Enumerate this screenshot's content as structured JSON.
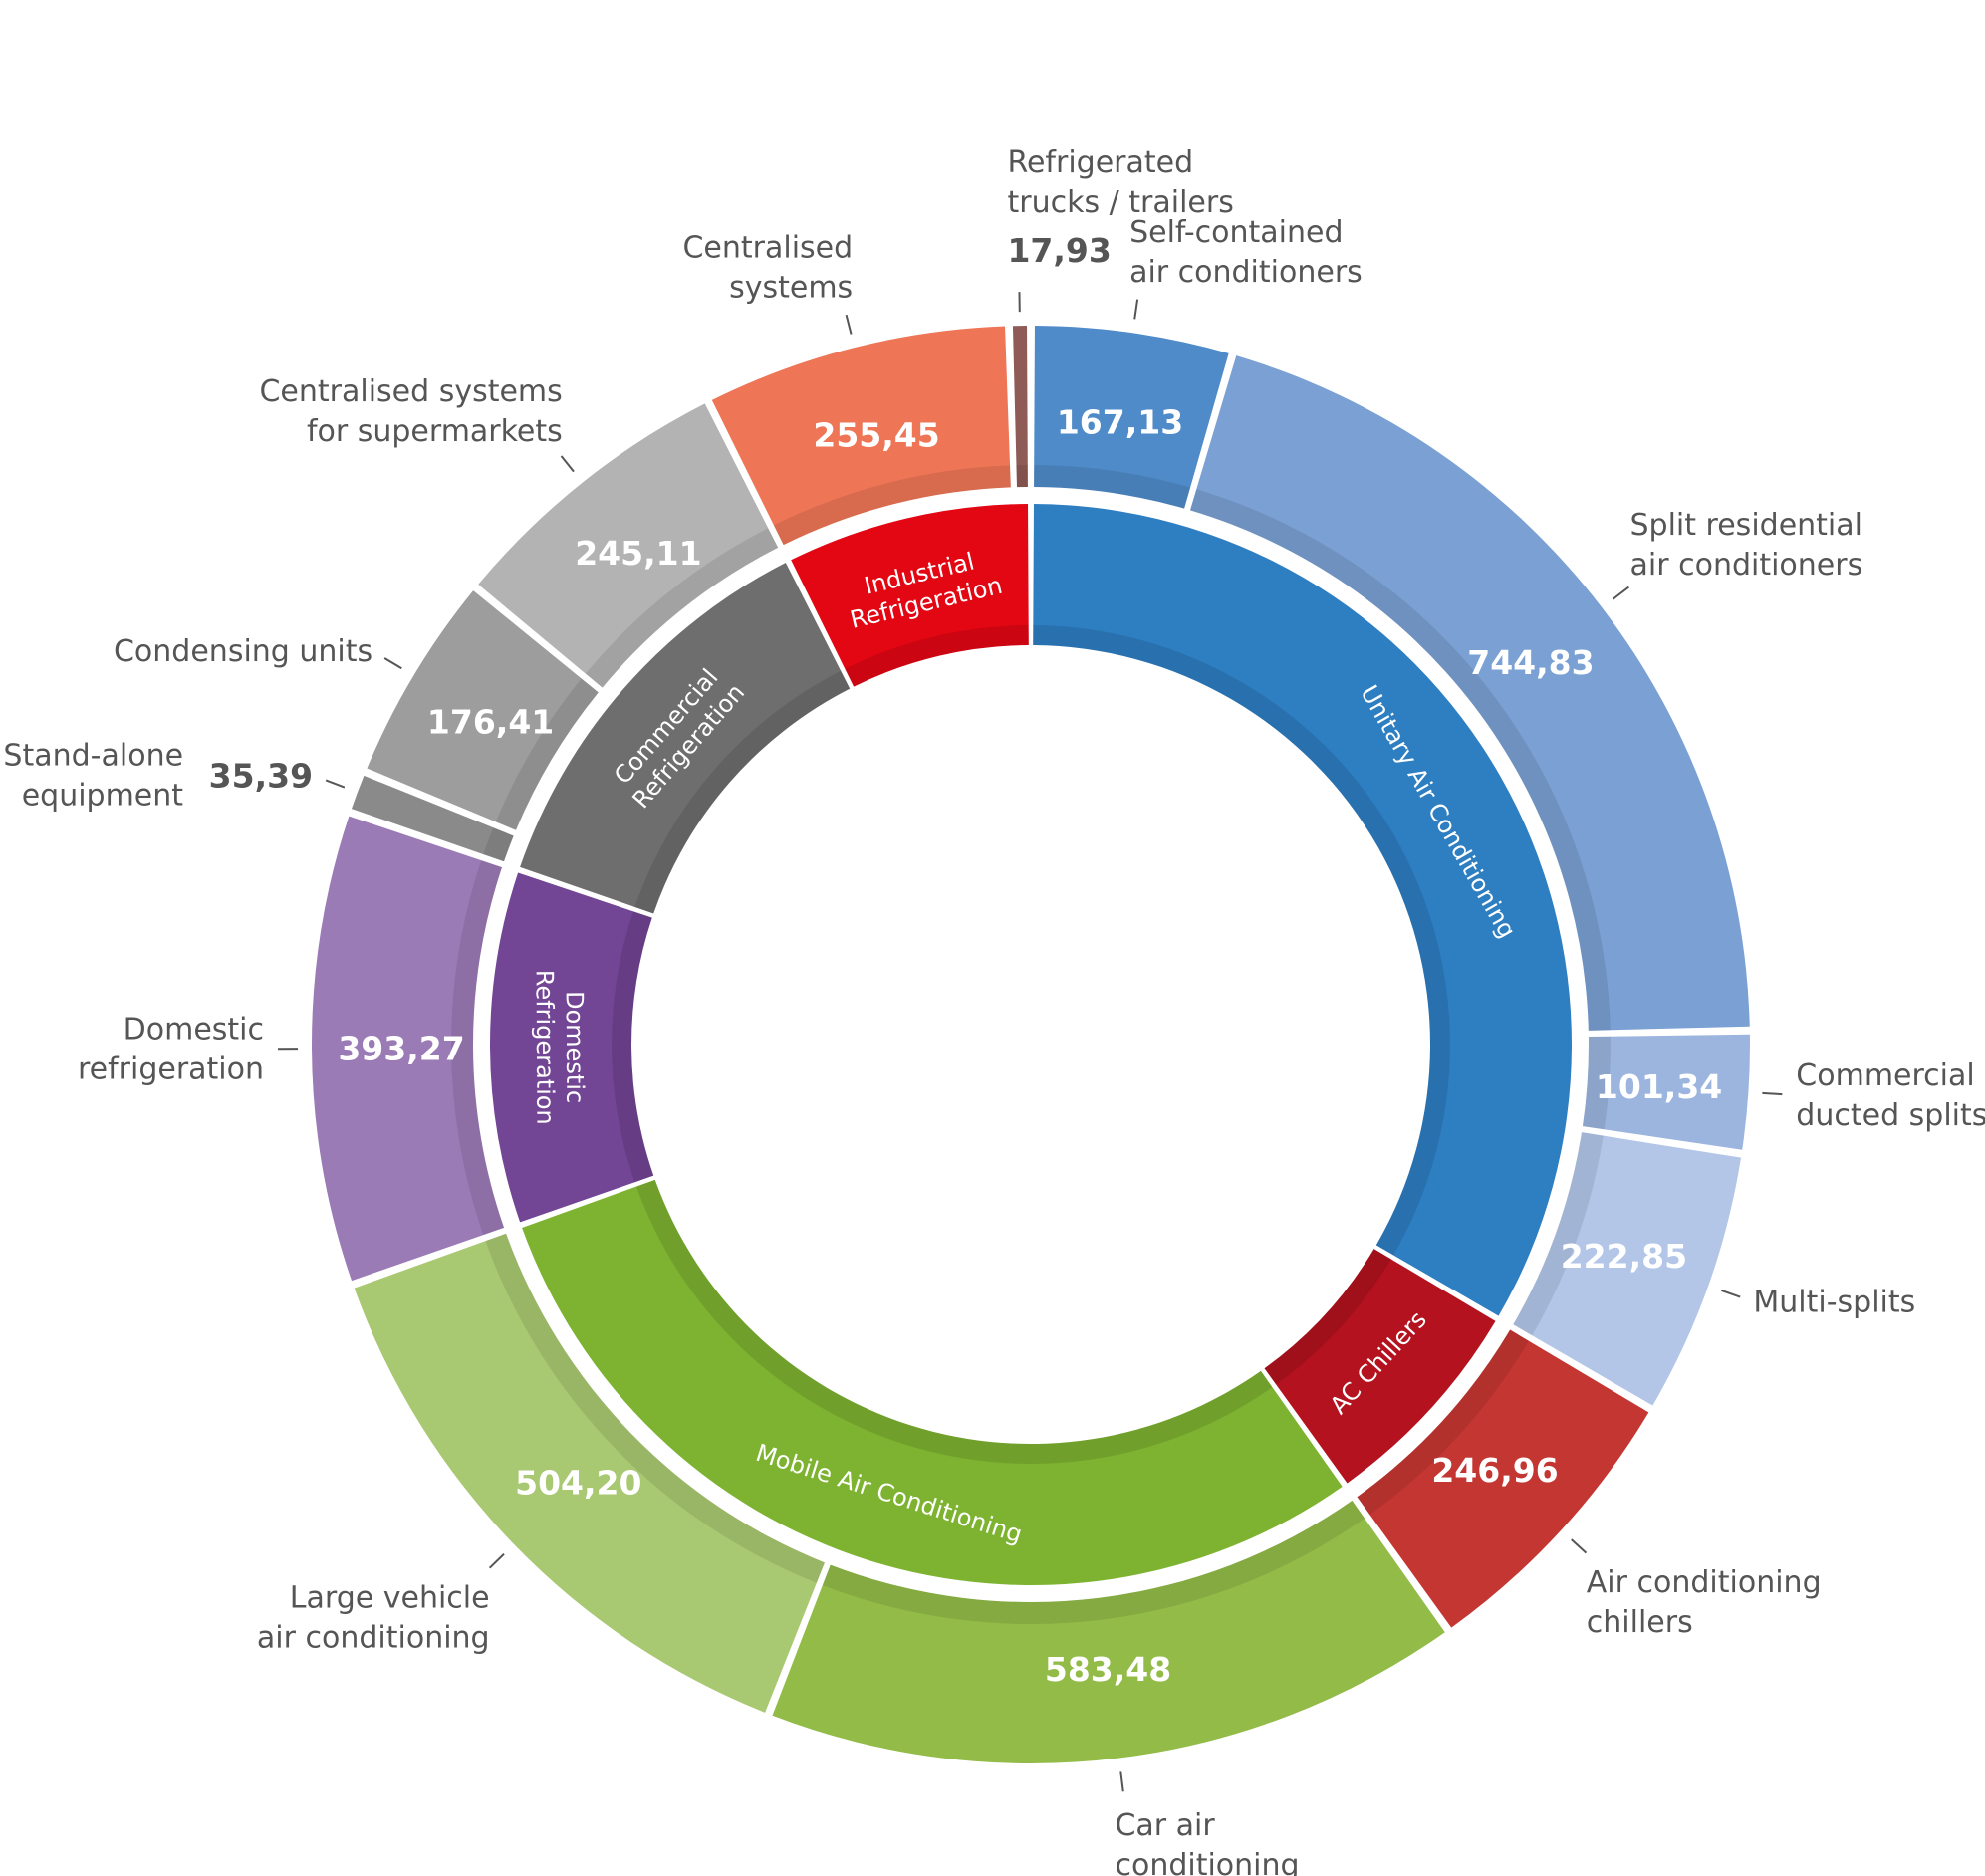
{
  "chart_data": {
    "type": "pie",
    "title": "",
    "inner_ring": [
      {
        "name": "Unitary Air Conditioning",
        "lines": [
          "Unitary Air Conditioning"
        ],
        "color": "#2e7ec2"
      },
      {
        "name": "AC Chillers",
        "lines": [
          "AC Chillers"
        ],
        "color": "#b3121e"
      },
      {
        "name": "Mobile Air Conditioning",
        "lines": [
          "Mobile Air Conditioning"
        ],
        "color": "#7db330"
      },
      {
        "name": "Domestic Refrigeration",
        "lines": [
          "Domestic",
          "Refrigeration"
        ],
        "color": "#724595"
      },
      {
        "name": "Commercial Refrigeration",
        "lines": [
          "Commercial",
          "Refrigeration"
        ],
        "color": "#6e6e6e"
      },
      {
        "name": "Industrial Refrigeration",
        "lines": [
          "Industrial",
          "Refrigeration"
        ],
        "color": "#e30613"
      }
    ],
    "outer_ring": [
      {
        "group": "Unitary Air Conditioning",
        "lines": [
          "Self-contained",
          "air conditioners"
        ],
        "value": 167.13,
        "value_label": "167,13",
        "color": "#4f8bc9"
      },
      {
        "group": "Unitary Air Conditioning",
        "lines": [
          "Split residential",
          "air conditioners"
        ],
        "value": 744.83,
        "value_label": "744,83",
        "color": "#7aa0d4"
      },
      {
        "group": "Unitary Air Conditioning",
        "lines": [
          "Commercial",
          "ducted splits"
        ],
        "value": 101.34,
        "value_label": "101,34",
        "color": "#9bb5df"
      },
      {
        "group": "Unitary Air Conditioning",
        "lines": [
          "Multi-splits"
        ],
        "value": 222.85,
        "value_label": "222,85",
        "color": "#b3c6e8"
      },
      {
        "group": "AC Chillers",
        "lines": [
          "Air conditioning",
          "chillers"
        ],
        "value": 246.96,
        "value_label": "246,96",
        "color": "#c43632"
      },
      {
        "group": "Mobile Air Conditioning",
        "lines": [
          "Car air",
          "conditioning"
        ],
        "value": 583.48,
        "value_label": "583,48",
        "color": "#92bb48"
      },
      {
        "group": "Mobile Air Conditioning",
        "lines": [
          "Large vehicle",
          "air conditioning"
        ],
        "value": 504.2,
        "value_label": "504,20",
        "color": "#a9c872"
      },
      {
        "group": "Domestic Refrigeration",
        "lines": [
          "Domestic",
          "refrigeration"
        ],
        "value": 393.27,
        "value_label": "393,27",
        "color": "#9b7bb6"
      },
      {
        "group": "Commercial Refrigeration",
        "lines": [
          "Stand-alone",
          "equipment"
        ],
        "value": 35.39,
        "value_label": "35,39",
        "color": "#8a8a8a"
      },
      {
        "group": "Commercial Refrigeration",
        "lines": [
          "Condensing units"
        ],
        "value": 176.41,
        "value_label": "176,41",
        "color": "#9d9d9d"
      },
      {
        "group": "Commercial Refrigeration",
        "lines": [
          "Centralised systems",
          "for supermarkets"
        ],
        "value": 245.11,
        "value_label": "245,11",
        "color": "#b3b3b3"
      },
      {
        "group": "Industrial Refrigeration",
        "lines": [
          "Centralised",
          "systems"
        ],
        "value": 255.45,
        "value_label": "255,45",
        "color": "#ee7556"
      },
      {
        "group": "Industrial Refrigeration",
        "lines": [
          "Refrigerated",
          "trucks / trailers"
        ],
        "value": 17.93,
        "value_label": "17,93",
        "color": "#8f5b57"
      }
    ]
  }
}
